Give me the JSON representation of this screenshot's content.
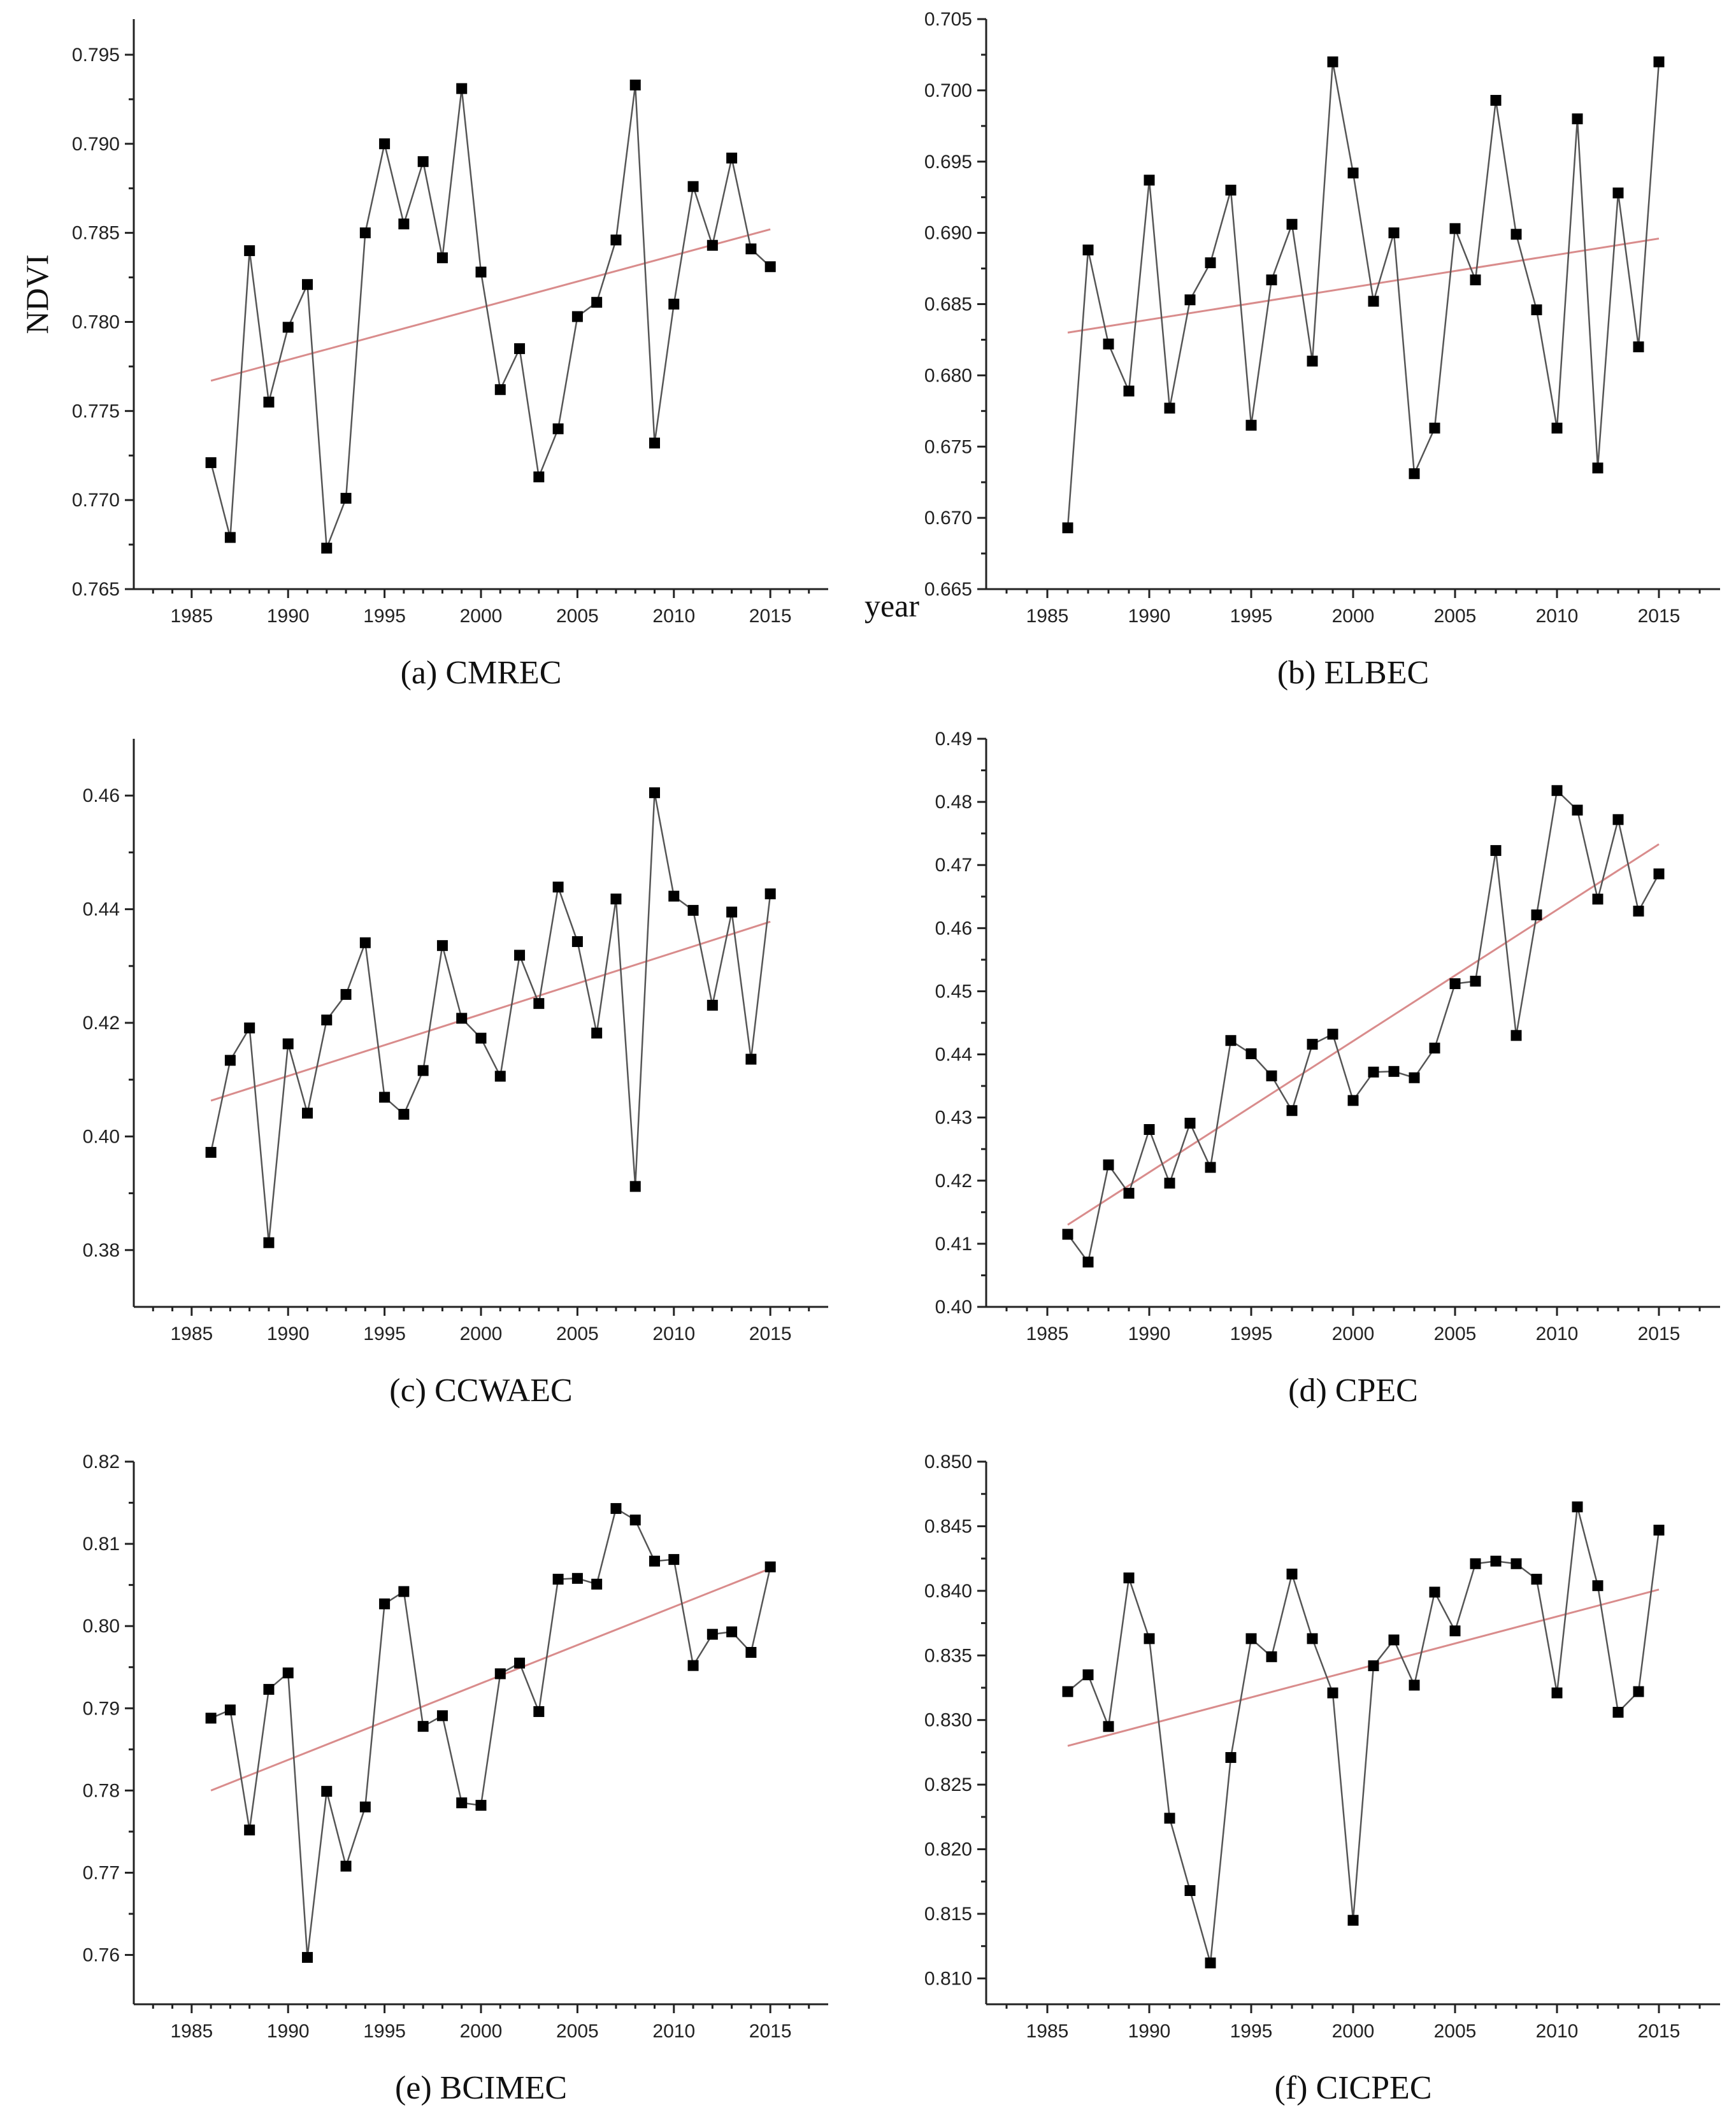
{
  "figure": {
    "ylabel": "NDVI",
    "xlabel": "year"
  },
  "chart_data": [
    {
      "id": "a",
      "type": "line",
      "title": "(a) CMREC",
      "xlabel": "year",
      "ylabel": "NDVI",
      "xlim": [
        1982,
        2018
      ],
      "xticks": [
        1985,
        1990,
        1995,
        2000,
        2005,
        2010,
        2015
      ],
      "ylim": [
        0.765,
        0.797
      ],
      "yticks": [
        0.765,
        0.77,
        0.775,
        0.78,
        0.785,
        0.79,
        0.795
      ],
      "ytick_labels": [
        "0.765",
        "0.770",
        "0.775",
        "0.780",
        "0.785",
        "0.790",
        "0.795"
      ],
      "x": [
        1986,
        1987,
        1988,
        1989,
        1990,
        1991,
        1992,
        1993,
        1994,
        1995,
        1996,
        1997,
        1998,
        1999,
        2000,
        2001,
        2002,
        2003,
        2004,
        2005,
        2006,
        2007,
        2008,
        2009,
        2010,
        2011,
        2012,
        2013,
        2014,
        2015
      ],
      "y": [
        0.7721,
        0.7679,
        0.784,
        0.7755,
        0.7797,
        0.7821,
        0.7673,
        0.7701,
        0.785,
        0.79,
        0.7855,
        0.789,
        0.7836,
        0.7931,
        0.7828,
        0.7762,
        0.7785,
        0.7713,
        0.774,
        0.7803,
        0.7811,
        0.7846,
        0.7933,
        0.7732,
        0.781,
        0.7876,
        0.7843,
        0.7892,
        0.7841,
        0.7831
      ],
      "trend": [
        0.7767,
        0.7852
      ]
    },
    {
      "id": "b",
      "type": "line",
      "title": "(b) ELBEC",
      "xlabel": "year",
      "ylabel": "NDVI",
      "xlim": [
        1982,
        2018
      ],
      "xticks": [
        1985,
        1990,
        1995,
        2000,
        2005,
        2010,
        2015
      ],
      "ylim": [
        0.665,
        0.705
      ],
      "yticks": [
        0.665,
        0.67,
        0.675,
        0.68,
        0.685,
        0.69,
        0.695,
        0.7,
        0.705
      ],
      "ytick_labels": [
        "0.665",
        "0.670",
        "0.675",
        "0.680",
        "0.685",
        "0.690",
        "0.695",
        "0.700",
        "0.705"
      ],
      "x": [
        1986,
        1987,
        1988,
        1989,
        1990,
        1991,
        1992,
        1993,
        1994,
        1995,
        1996,
        1997,
        1998,
        1999,
        2000,
        2001,
        2002,
        2003,
        2004,
        2005,
        2006,
        2007,
        2008,
        2009,
        2010,
        2011,
        2012,
        2013,
        2014,
        2015
      ],
      "y": [
        0.6693,
        0.6888,
        0.6822,
        0.6789,
        0.6937,
        0.6777,
        0.6853,
        0.6879,
        0.693,
        0.6765,
        0.6867,
        0.6906,
        0.681,
        0.702,
        0.6942,
        0.6852,
        0.69,
        0.6731,
        0.6763,
        0.6903,
        0.6867,
        0.6993,
        0.6899,
        0.6846,
        0.6763,
        0.698,
        0.6735,
        0.6928,
        0.682,
        0.702
      ],
      "trend": [
        0.683,
        0.6896
      ]
    },
    {
      "id": "c",
      "type": "line",
      "title": "(c) CCWAEC",
      "xlabel": "year",
      "ylabel": "NDVI",
      "xlim": [
        1982,
        2018
      ],
      "xticks": [
        1985,
        1990,
        1995,
        2000,
        2005,
        2010,
        2015
      ],
      "ylim": [
        0.37,
        0.47
      ],
      "yticks": [
        0.38,
        0.4,
        0.42,
        0.44,
        0.46
      ],
      "ytick_labels": [
        "0.38",
        "0.40",
        "0.42",
        "0.44",
        "0.46"
      ],
      "x": [
        1986,
        1987,
        1988,
        1989,
        1990,
        1991,
        1992,
        1993,
        1994,
        1995,
        1996,
        1997,
        1998,
        1999,
        2000,
        2001,
        2002,
        2003,
        2004,
        2005,
        2006,
        2007,
        2008,
        2009,
        2010,
        2011,
        2012,
        2013,
        2014,
        2015
      ],
      "y": [
        0.3972,
        0.4134,
        0.4191,
        0.3813,
        0.4163,
        0.4041,
        0.4205,
        0.425,
        0.4341,
        0.4069,
        0.4039,
        0.4116,
        0.4336,
        0.4208,
        0.4173,
        0.4106,
        0.4319,
        0.4234,
        0.4439,
        0.4343,
        0.4182,
        0.4418,
        0.3912,
        0.4605,
        0.4423,
        0.4398,
        0.4231,
        0.4395,
        0.4136,
        0.4427
      ],
      "trend": [
        0.4063,
        0.4378
      ]
    },
    {
      "id": "d",
      "type": "line",
      "title": "(d) CPEC",
      "xlabel": "year",
      "ylabel": "NDVI",
      "xlim": [
        1982,
        2018
      ],
      "xticks": [
        1985,
        1990,
        1995,
        2000,
        2005,
        2010,
        2015
      ],
      "ylim": [
        0.4,
        0.49
      ],
      "yticks": [
        0.4,
        0.41,
        0.42,
        0.43,
        0.44,
        0.45,
        0.46,
        0.47,
        0.48,
        0.49
      ],
      "ytick_labels": [
        "0.40",
        "0.41",
        "0.42",
        "0.43",
        "0.44",
        "0.45",
        "0.46",
        "0.47",
        "0.48",
        "0.49"
      ],
      "x": [
        1986,
        1987,
        1988,
        1989,
        1990,
        1991,
        1992,
        1993,
        1994,
        1995,
        1996,
        1997,
        1998,
        1999,
        2000,
        2001,
        2002,
        2003,
        2004,
        2005,
        2006,
        2007,
        2008,
        2009,
        2010,
        2011,
        2012,
        2013,
        2014,
        2015
      ],
      "y": [
        0.4115,
        0.4071,
        0.4225,
        0.418,
        0.4281,
        0.4196,
        0.4291,
        0.4221,
        0.4422,
        0.4401,
        0.4366,
        0.4311,
        0.4416,
        0.4432,
        0.4327,
        0.4372,
        0.4373,
        0.4363,
        0.441,
        0.4512,
        0.4516,
        0.4723,
        0.443,
        0.4621,
        0.4818,
        0.4787,
        0.4646,
        0.4772,
        0.4627,
        0.4686
      ],
      "trend": [
        0.413,
        0.4733
      ]
    },
    {
      "id": "e",
      "type": "line",
      "title": "(e) BCIMEC",
      "xlabel": "year",
      "ylabel": "NDVI",
      "xlim": [
        1982,
        2018
      ],
      "xticks": [
        1985,
        1990,
        1995,
        2000,
        2005,
        2010,
        2015
      ],
      "ylim": [
        0.754,
        0.82
      ],
      "yticks": [
        0.76,
        0.77,
        0.78,
        0.79,
        0.8,
        0.81,
        0.82
      ],
      "ytick_labels": [
        "0.76",
        "0.77",
        "0.78",
        "0.79",
        "0.80",
        "0.81",
        "0.82"
      ],
      "x": [
        1986,
        1987,
        1988,
        1989,
        1990,
        1991,
        1992,
        1993,
        1994,
        1995,
        1996,
        1997,
        1998,
        1999,
        2000,
        2001,
        2002,
        2003,
        2004,
        2005,
        2006,
        2007,
        2008,
        2009,
        2010,
        2011,
        2012,
        2013,
        2014,
        2015
      ],
      "y": [
        0.7888,
        0.7898,
        0.7752,
        0.7923,
        0.7943,
        0.7597,
        0.7799,
        0.7708,
        0.778,
        0.8027,
        0.8042,
        0.7878,
        0.7891,
        0.7785,
        0.7782,
        0.7942,
        0.7955,
        0.7896,
        0.8057,
        0.8058,
        0.8051,
        0.8143,
        0.8129,
        0.8079,
        0.8081,
        0.7952,
        0.799,
        0.7993,
        0.7968,
        0.8072
      ],
      "trend": [
        0.78,
        0.807
      ]
    },
    {
      "id": "f",
      "type": "line",
      "title": "(f) CICPEC",
      "xlabel": "year",
      "ylabel": "NDVI",
      "xlim": [
        1982,
        2018
      ],
      "xticks": [
        1985,
        1990,
        1995,
        2000,
        2005,
        2010,
        2015
      ],
      "ylim": [
        0.808,
        0.85
      ],
      "yticks": [
        0.81,
        0.815,
        0.82,
        0.825,
        0.83,
        0.835,
        0.84,
        0.845,
        0.85
      ],
      "ytick_labels": [
        "0.810",
        "0.815",
        "0.820",
        "0.825",
        "0.830",
        "0.835",
        "0.840",
        "0.845",
        "0.850"
      ],
      "x": [
        1986,
        1987,
        1988,
        1989,
        1990,
        1991,
        1992,
        1993,
        1994,
        1995,
        1996,
        1997,
        1998,
        1999,
        2000,
        2001,
        2002,
        2003,
        2004,
        2005,
        2006,
        2007,
        2008,
        2009,
        2010,
        2011,
        2012,
        2013,
        2014,
        2015
      ],
      "y": [
        0.8322,
        0.8335,
        0.8295,
        0.841,
        0.8363,
        0.8224,
        0.8168,
        0.8112,
        0.8271,
        0.8363,
        0.8349,
        0.8413,
        0.8363,
        0.8321,
        0.8145,
        0.8342,
        0.8362,
        0.8327,
        0.8399,
        0.8369,
        0.8421,
        0.8423,
        0.8421,
        0.8409,
        0.8321,
        0.8465,
        0.8404,
        0.8306,
        0.8322,
        0.8447
      ],
      "trend": [
        0.828,
        0.8401
      ]
    }
  ]
}
